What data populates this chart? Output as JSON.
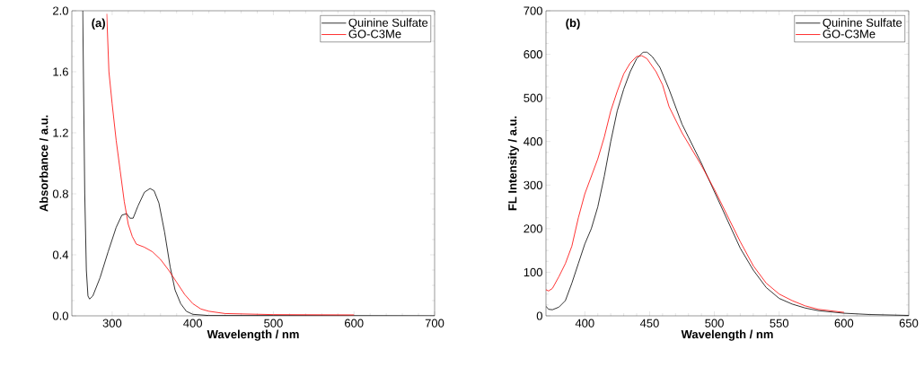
{
  "chart_data": [
    {
      "type": "line",
      "xlabel": "Wavelength / nm",
      "ylabel": "Absorbance / a.u.",
      "annotations": [
        "(a)"
      ],
      "xlim": [
        250,
        700
      ],
      "ylim": [
        0,
        2.0
      ],
      "xticks": [
        300,
        400,
        500,
        600,
        700
      ],
      "yticks": [
        {
          "value": 0,
          "label": "0.0"
        },
        {
          "value": 0.4,
          "label": "0.4"
        },
        {
          "value": 0.8,
          "label": "0.8"
        },
        {
          "value": 1.2,
          "label": "1.2"
        },
        {
          "value": 1.6,
          "label": "1.6"
        },
        {
          "value": 2.0,
          "label": "2.0"
        }
      ],
      "legend": "top right",
      "grid": false,
      "marker": "none",
      "line_style": "solid",
      "series": [
        {
          "name": "Quinine Sulfate",
          "color": "#000000",
          "x": [
            263.5,
            266,
            268,
            270,
            272,
            276,
            285,
            295,
            305,
            312,
            318,
            322,
            326,
            332,
            340,
            347,
            352,
            358,
            365,
            372,
            378,
            385,
            392,
            400,
            420,
            500,
            700
          ],
          "values": [
            2.0,
            0.8,
            0.3,
            0.13,
            0.11,
            0.13,
            0.25,
            0.42,
            0.58,
            0.66,
            0.67,
            0.64,
            0.64,
            0.72,
            0.81,
            0.835,
            0.82,
            0.74,
            0.55,
            0.32,
            0.17,
            0.08,
            0.03,
            0.01,
            0.002,
            0.002,
            0
          ]
        },
        {
          "name": "GO-C3Me",
          "color": "#ff0000",
          "x": [
            293.3,
            296,
            300,
            305,
            310,
            315,
            320,
            325,
            330,
            340,
            350,
            360,
            370,
            380,
            390,
            400,
            410,
            420,
            440,
            500,
            600
          ],
          "values": [
            1.98,
            1.6,
            1.39,
            1.15,
            0.95,
            0.75,
            0.6,
            0.52,
            0.47,
            0.45,
            0.42,
            0.37,
            0.3,
            0.22,
            0.14,
            0.08,
            0.045,
            0.03,
            0.015,
            0.008,
            0.006
          ]
        }
      ]
    },
    {
      "type": "line",
      "xlabel": "Wavelength / nm",
      "ylabel": "FL Intensity / a.u.",
      "annotations": [
        "(b)"
      ],
      "xlim": [
        370,
        650
      ],
      "ylim": [
        0,
        700
      ],
      "xticks": [
        400,
        450,
        500,
        550,
        600,
        650
      ],
      "yticks": [
        0,
        100,
        200,
        300,
        400,
        500,
        600,
        700
      ],
      "legend": "top right",
      "grid": false,
      "marker": "none",
      "line_style": "solid",
      "series": [
        {
          "name": "Quinine Sulfate",
          "color": "#000000",
          "x": [
            370,
            372,
            375,
            380,
            385,
            390,
            395,
            400,
            405,
            410,
            415,
            420,
            425,
            430,
            435,
            440,
            445,
            448,
            452,
            458,
            465,
            470,
            475,
            480,
            490,
            500,
            510,
            520,
            530,
            540,
            550,
            560,
            570,
            580,
            600,
            620,
            650
          ],
          "values": [
            22,
            15,
            14,
            20,
            35,
            75,
            120,
            165,
            200,
            250,
            320,
            400,
            470,
            520,
            560,
            590,
            605,
            605,
            595,
            570,
            520,
            480,
            440,
            410,
            350,
            285,
            220,
            155,
            105,
            65,
            40,
            27,
            18,
            12,
            6,
            3,
            1
          ]
        },
        {
          "name": "GO-C3Me",
          "color": "#ff0000",
          "x": [
            370,
            372,
            375,
            380,
            385,
            390,
            395,
            400,
            405,
            410,
            415,
            420,
            425,
            430,
            435,
            440,
            444,
            448,
            455,
            460,
            465,
            470,
            475,
            480,
            490,
            500,
            510,
            520,
            530,
            540,
            550,
            560,
            570,
            580,
            600
          ],
          "values": [
            60,
            57,
            63,
            90,
            120,
            160,
            225,
            280,
            320,
            360,
            410,
            470,
            515,
            555,
            580,
            595,
            597,
            590,
            560,
            530,
            480,
            450,
            420,
            395,
            345,
            290,
            230,
            170,
            115,
            75,
            50,
            35,
            23,
            15,
            8
          ]
        }
      ]
    }
  ]
}
